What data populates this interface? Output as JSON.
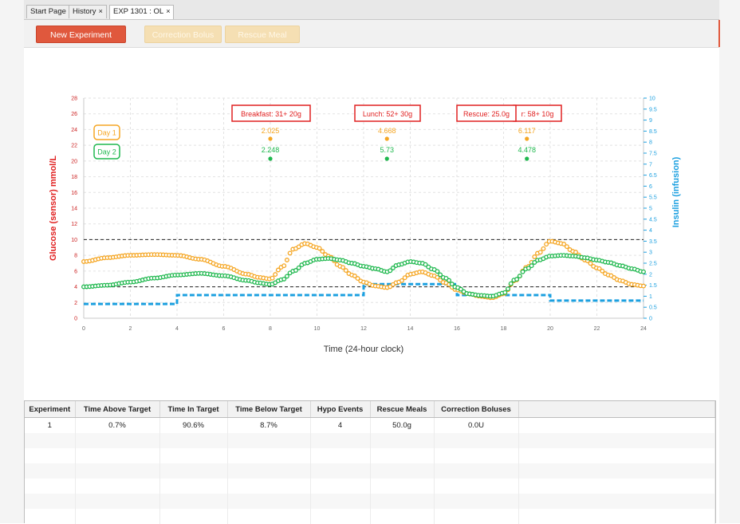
{
  "tabs": [
    {
      "label": "Start Page",
      "closable": false
    },
    {
      "label": "History",
      "closable": true
    },
    {
      "label": "EXP 1301 : OL",
      "closable": true
    }
  ],
  "tab_close_glyph": "×",
  "toolbar": {
    "new_experiment": "New Experiment",
    "correction_bolus": "Correction Bolus",
    "rescue_meal": "Rescue Meal"
  },
  "chart_data": {
    "type": "line",
    "xlabel": "Time (24-hour clock)",
    "ylabel_left": "Glucose (sensor) mmol/L",
    "ylabel_right": "Insulin (infusion)",
    "xlim": [
      0,
      24
    ],
    "ylim_left": [
      0,
      28
    ],
    "ylim_right": [
      0,
      10
    ],
    "xticks": [
      0,
      2,
      4,
      6,
      8,
      10,
      12,
      14,
      16,
      18,
      20,
      22,
      24
    ],
    "yticks_left": [
      0,
      2,
      4,
      6,
      8,
      10,
      12,
      14,
      16,
      18,
      20,
      22,
      24,
      26,
      28
    ],
    "yticks_right": [
      "0",
      "0.5",
      "1",
      "1.5",
      "2",
      "2.5",
      "3",
      "3.5",
      "4",
      "4.5",
      "5",
      "5.5",
      "6",
      "6.5",
      "7",
      "7.5",
      "8",
      "8.5",
      "9",
      "9.5",
      "10"
    ],
    "target_lines_left": [
      4,
      10
    ],
    "grid": true,
    "legend": [
      {
        "name": "Day 1",
        "color": "#f5a623"
      },
      {
        "name": "Day 2",
        "color": "#1fb84e"
      }
    ],
    "series": [
      {
        "name": "Day 1",
        "color": "#f5a623",
        "x": [
          0,
          1,
          2,
          3,
          4,
          5,
          6,
          7,
          7.5,
          8,
          8.5,
          9,
          9.5,
          10,
          10.5,
          11,
          11.5,
          12,
          12.5,
          13,
          13.5,
          14,
          14.5,
          15,
          15.5,
          16,
          16.5,
          17,
          17.5,
          18,
          18.5,
          19,
          19.5,
          20,
          20.5,
          21,
          21.5,
          22,
          22.5,
          23,
          23.5,
          24
        ],
        "values": [
          7.2,
          7.7,
          8.0,
          8.1,
          8.0,
          7.5,
          6.6,
          5.6,
          5.2,
          5.0,
          6.5,
          8.8,
          9.5,
          9.0,
          7.9,
          6.6,
          5.5,
          4.6,
          4.1,
          3.9,
          4.6,
          5.6,
          5.9,
          5.4,
          4.5,
          3.6,
          3.1,
          2.8,
          2.6,
          3.1,
          4.8,
          6.5,
          8.3,
          9.8,
          9.5,
          8.5,
          7.4,
          6.4,
          5.5,
          4.8,
          4.3,
          4.1
        ]
      },
      {
        "name": "Day 2",
        "color": "#1fb84e",
        "x": [
          0,
          1,
          2,
          3,
          4,
          5,
          6,
          7,
          7.5,
          8,
          8.5,
          9,
          9.5,
          10,
          10.5,
          11,
          11.5,
          12,
          12.5,
          13,
          13.5,
          14,
          14.5,
          15,
          15.5,
          16,
          16.5,
          17,
          17.5,
          18,
          18.5,
          19,
          19.5,
          20,
          20.5,
          21,
          21.5,
          22,
          22.5,
          23,
          23.5,
          24
        ],
        "values": [
          4.0,
          4.2,
          4.6,
          5.1,
          5.5,
          5.7,
          5.4,
          4.8,
          4.5,
          4.3,
          4.9,
          6.0,
          7.0,
          7.5,
          7.6,
          7.4,
          7.0,
          6.6,
          6.3,
          5.9,
          6.8,
          7.2,
          7.0,
          6.2,
          5.1,
          3.9,
          3.1,
          2.9,
          2.8,
          3.2,
          4.9,
          6.3,
          7.4,
          7.9,
          8.0,
          7.9,
          7.7,
          7.4,
          7.1,
          6.7,
          6.3,
          5.9
        ]
      }
    ],
    "insulin": {
      "name": "Insulin (infusion)",
      "color": "#1ca0e0",
      "x": [
        0,
        4,
        4,
        12,
        12,
        16,
        16,
        20,
        20,
        24
      ],
      "values": [
        0.65,
        0.65,
        1.05,
        1.05,
        1.55,
        1.55,
        1.05,
        1.05,
        0.8,
        0.8
      ]
    },
    "annotations": [
      {
        "label": "Breakfast: 31+ 20g",
        "x": 8.0,
        "day1": "2.025",
        "day2": "2.248",
        "y1": 22.6,
        "y2": 20.4
      },
      {
        "label": "Lunch: 52+ 30g",
        "x": 13.0,
        "day1": "4.668",
        "day2": "5.73",
        "y1": 22.6,
        "y2": 20.4
      },
      {
        "label": "r: 58+ 10g",
        "x": 19.0,
        "day1": "6.117",
        "day2": "4.478",
        "y1": 22.6,
        "y2": 20.4
      },
      {
        "label": "Rescue: 25.0g",
        "x": 17.0
      }
    ]
  },
  "table": {
    "headers": [
      "Experiment",
      "Time Above Target",
      "Time In Target",
      "Time Below Target",
      "Hypo Events",
      "Rescue Meals",
      "Correction Boluses"
    ],
    "rows": [
      [
        "1",
        "0.7%",
        "90.6%",
        "8.7%",
        "4",
        "50.0g",
        "0.0U"
      ]
    ],
    "empty_rows": 6
  }
}
